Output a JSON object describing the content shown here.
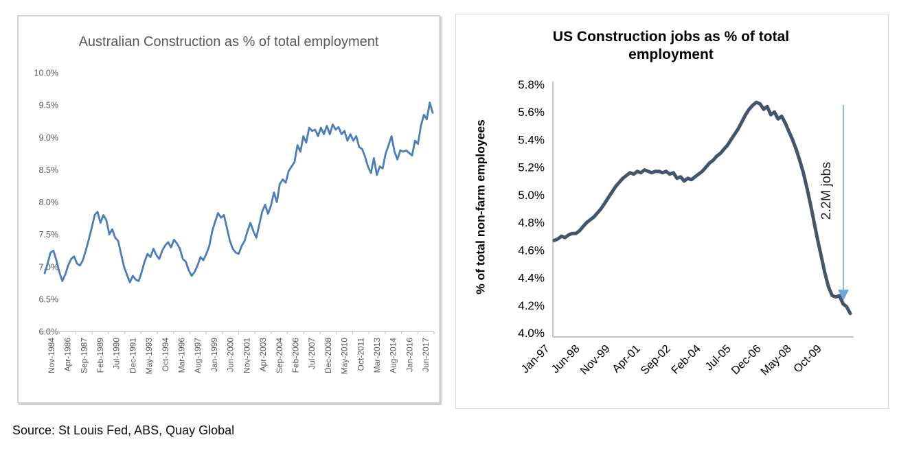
{
  "source": "Source: St Louis Fed, ABS, Quay Global",
  "chart_data": [
    {
      "type": "line",
      "title": "Australian Construction as % of total employment",
      "ylim": [
        6.0,
        10.0
      ],
      "y_tick_labels": [
        "10.0%",
        "9.5%",
        "9.0%",
        "8.5%",
        "8.0%",
        "7.5%",
        "7.0%",
        "6.5%",
        "6.0%"
      ],
      "x_tick_labels": [
        "Nov-1984",
        "Apr-1986",
        "Sep-1987",
        "Feb-1989",
        "Jul-1990",
        "Dec-1991",
        "May-1993",
        "Oct-1994",
        "Mar-1996",
        "Aug-1997",
        "Jan-1999",
        "Jun-2000",
        "Nov-2001",
        "Apr-2003",
        "Sep-2004",
        "Feb-2006",
        "Jul-2007",
        "Dec-2008",
        "May-2010",
        "Oct-2011",
        "Mar-2013",
        "Aug-2014",
        "Jan-2016",
        "Jun-2017"
      ],
      "line_color": "#4a7ebb",
      "axis_color": "#c0c0c0",
      "text_color": "#595959",
      "values": [
        6.9,
        7.05,
        7.22,
        7.25,
        7.1,
        6.92,
        6.78,
        6.88,
        7.02,
        7.12,
        7.16,
        7.05,
        7.02,
        7.1,
        7.25,
        7.42,
        7.6,
        7.8,
        7.85,
        7.68,
        7.8,
        7.72,
        7.5,
        7.58,
        7.45,
        7.4,
        7.2,
        7.0,
        6.88,
        6.76,
        6.86,
        6.8,
        6.78,
        6.92,
        7.08,
        7.2,
        7.15,
        7.28,
        7.18,
        7.12,
        7.25,
        7.33,
        7.38,
        7.3,
        7.42,
        7.36,
        7.28,
        7.12,
        7.08,
        6.95,
        6.86,
        6.92,
        7.02,
        7.15,
        7.1,
        7.2,
        7.32,
        7.55,
        7.7,
        7.83,
        7.76,
        7.8,
        7.6,
        7.4,
        7.28,
        7.22,
        7.2,
        7.32,
        7.4,
        7.55,
        7.68,
        7.55,
        7.45,
        7.65,
        7.85,
        7.96,
        7.82,
        7.95,
        8.15,
        8.0,
        8.28,
        8.35,
        8.3,
        8.48,
        8.55,
        8.62,
        8.88,
        8.78,
        9.02,
        8.92,
        9.15,
        9.1,
        9.12,
        9.02,
        9.15,
        9.05,
        9.18,
        9.05,
        9.2,
        9.12,
        9.16,
        9.05,
        9.1,
        8.95,
        9.05,
        8.95,
        9.02,
        8.85,
        8.82,
        8.7,
        8.55,
        8.45,
        8.68,
        8.42,
        8.55,
        8.52,
        8.75,
        8.88,
        9.02,
        8.78,
        8.66,
        8.8,
        8.78,
        8.8,
        8.76,
        8.72,
        8.95,
        8.9,
        9.18,
        9.35,
        9.28,
        9.54,
        9.38
      ]
    },
    {
      "type": "line",
      "title": "US Construction jobs as % of total employment",
      "ylabel": "% of total non-farm employees",
      "ylim": [
        4.0,
        5.8
      ],
      "y_tick_labels": [
        "5.8%",
        "5.6%",
        "5.4%",
        "5.2%",
        "5.0%",
        "4.8%",
        "4.6%",
        "4.4%",
        "4.2%",
        "4.0%"
      ],
      "x_tick_labels": [
        "Jan-97",
        "Jun-98",
        "Nov-99",
        "Apr-01",
        "Sep-02",
        "Feb-04",
        "Jul-05",
        "Dec-06",
        "May-08",
        "Oct-09"
      ],
      "line_color": "#44546a",
      "axis_color": "#9e9e9e",
      "text_color": "#000000",
      "annotation": {
        "text": "2.2M jobs",
        "arrow_color": "#70a6d9"
      },
      "values": [
        4.67,
        4.68,
        4.7,
        4.69,
        4.71,
        4.72,
        4.72,
        4.74,
        4.77,
        4.8,
        4.82,
        4.84,
        4.87,
        4.9,
        4.94,
        4.98,
        5.02,
        5.06,
        5.09,
        5.12,
        5.14,
        5.16,
        5.15,
        5.17,
        5.16,
        5.18,
        5.17,
        5.16,
        5.17,
        5.17,
        5.16,
        5.17,
        5.15,
        5.16,
        5.12,
        5.13,
        5.1,
        5.12,
        5.11,
        5.13,
        5.15,
        5.17,
        5.2,
        5.23,
        5.25,
        5.28,
        5.3,
        5.33,
        5.36,
        5.4,
        5.44,
        5.48,
        5.53,
        5.58,
        5.62,
        5.65,
        5.67,
        5.66,
        5.62,
        5.64,
        5.58,
        5.6,
        5.55,
        5.57,
        5.52,
        5.46,
        5.4,
        5.33,
        5.25,
        5.16,
        5.05,
        4.93,
        4.8,
        4.67,
        4.55,
        4.43,
        4.33,
        4.27,
        4.26,
        4.27,
        4.21,
        4.19,
        4.14
      ]
    }
  ]
}
